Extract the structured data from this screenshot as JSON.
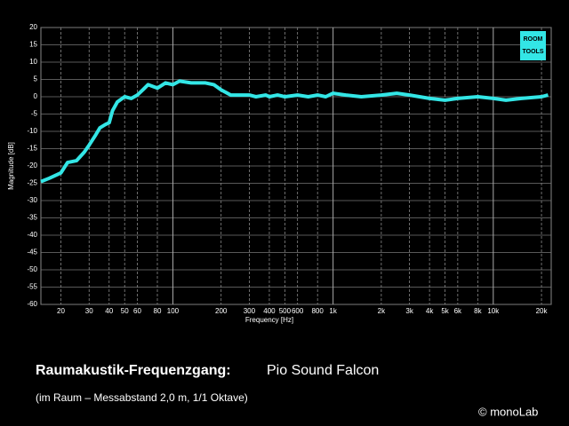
{
  "chart_data": {
    "type": "line",
    "title": "Raumakustik-Frequenzgang:",
    "subtitle": "Pio Sound Falcon",
    "note": "(im Raum – Messabstand 2,0 m, 1/1 Oktave)",
    "credit": "© monoLab",
    "logo": [
      "ROOM",
      "TOOLS"
    ],
    "xlabel": "Frequency [Hz]",
    "ylabel": "Magnitude [dB]",
    "log_x": true,
    "grid": true,
    "color": "#33e6e6",
    "x": [
      15,
      17,
      20,
      22,
      25,
      28,
      30,
      33,
      35,
      38,
      40,
      42,
      45,
      50,
      55,
      60,
      65,
      70,
      80,
      90,
      100,
      110,
      130,
      160,
      180,
      200,
      230,
      300,
      330,
      380,
      400,
      450,
      500,
      600,
      700,
      800,
      900,
      1000,
      1200,
      1500,
      2000,
      2500,
      3000,
      4000,
      5000,
      6000,
      8000,
      10000,
      12000,
      15000,
      20000,
      22000
    ],
    "values": [
      -24.5,
      -23.5,
      -22,
      -19,
      -18.5,
      -16,
      -14,
      -11,
      -9,
      -8,
      -7.5,
      -4,
      -1.5,
      0,
      -0.5,
      0.5,
      2,
      3.5,
      2.5,
      4,
      3.5,
      4.5,
      4,
      4,
      3.5,
      2,
      0.5,
      0.5,
      0,
      0.5,
      0,
      0.5,
      0,
      0.5,
      0,
      0.5,
      0,
      1,
      0.5,
      0,
      0.5,
      1,
      0.5,
      -0.5,
      -1,
      -0.5,
      0,
      -0.5,
      -1,
      -0.5,
      0,
      0.5
    ],
    "xlim": [
      15,
      23000
    ],
    "ylim": [
      -60,
      20
    ],
    "xticks": [
      20,
      30,
      40,
      50,
      60,
      80,
      100,
      200,
      300,
      400,
      500,
      600,
      800,
      {
        "value": 1000,
        "label": "1k"
      },
      {
        "value": 2000,
        "label": "2k"
      },
      {
        "value": 3000,
        "label": "3k"
      },
      {
        "value": 4000,
        "label": "4k"
      },
      {
        "value": 5000,
        "label": "5k"
      },
      {
        "value": 6000,
        "label": "6k"
      },
      {
        "value": 8000,
        "label": "8k"
      },
      {
        "value": 10000,
        "label": "10k"
      },
      {
        "value": 20000,
        "label": "20k"
      }
    ],
    "yticks": [
      -60,
      -55,
      -50,
      -45,
      -40,
      -35,
      -30,
      -25,
      -20,
      -15,
      -10,
      -5,
      0,
      5,
      10,
      15,
      20
    ]
  }
}
